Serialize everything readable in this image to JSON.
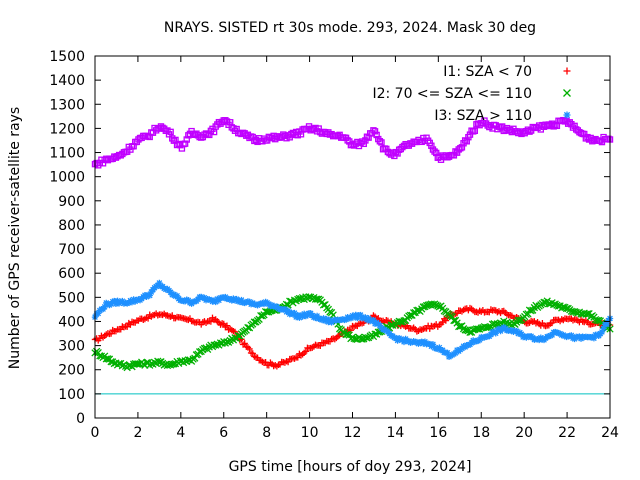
{
  "chart_data": {
    "type": "scatter",
    "title": "NRAYS. SISTED rt 30s mode. 293, 2024. Mask 30 deg",
    "xlabel": "GPS time [hours of doy 293, 2024]",
    "ylabel": "Number of GPS receiver-satellite rays",
    "xlim": [
      0,
      24
    ],
    "ylim": [
      0,
      1500
    ],
    "xticks": [
      0,
      2,
      4,
      6,
      8,
      10,
      12,
      14,
      16,
      18,
      20,
      22,
      24
    ],
    "yticks": [
      0,
      100,
      200,
      300,
      400,
      500,
      600,
      700,
      800,
      900,
      1000,
      1100,
      1200,
      1300,
      1400,
      1500
    ],
    "legend_position": "top-right",
    "threshold_line": {
      "y": 100,
      "color": "#00c0c0"
    },
    "series": [
      {
        "name": "I1: SZA < 70",
        "marker": "+",
        "color": "#ff0000",
        "x": [
          0,
          0.5,
          1,
          1.5,
          2,
          2.5,
          3,
          3.5,
          4,
          4.5,
          5,
          5.5,
          6,
          6.5,
          7,
          7.5,
          8,
          8.5,
          9,
          9.5,
          10,
          10.5,
          11,
          11.5,
          12,
          12.5,
          13,
          13.5,
          14,
          14.5,
          15,
          15.5,
          16,
          16.5,
          17,
          17.5,
          18,
          18.5,
          19,
          19.5,
          20,
          20.5,
          21,
          21.5,
          22,
          22.5,
          23,
          23.5,
          24
        ],
        "y": [
          320,
          345,
          365,
          385,
          405,
          420,
          430,
          425,
          410,
          405,
          390,
          410,
          385,
          355,
          300,
          255,
          225,
          220,
          235,
          260,
          290,
          305,
          320,
          345,
          375,
          395,
          420,
          400,
          390,
          380,
          365,
          375,
          385,
          420,
          445,
          450,
          440,
          445,
          440,
          420,
          400,
          395,
          385,
          405,
          415,
          405,
          395,
          390,
          385
        ]
      },
      {
        "name": "I2: 70 <= SZA <= 110",
        "marker": "x",
        "color": "#00b000",
        "x": [
          0,
          0.5,
          1,
          1.5,
          2,
          2.5,
          3,
          3.5,
          4,
          4.5,
          5,
          5.5,
          6,
          6.5,
          7,
          7.5,
          8,
          8.5,
          9,
          9.5,
          10,
          10.5,
          11,
          11.5,
          12,
          12.5,
          13,
          13.5,
          14,
          14.5,
          15,
          15.5,
          16,
          16.5,
          17,
          17.5,
          18,
          18.5,
          19,
          19.5,
          20,
          20.5,
          21,
          21.5,
          22,
          22.5,
          23,
          23.5,
          24
        ],
        "y": [
          275,
          250,
          225,
          215,
          225,
          225,
          230,
          220,
          235,
          240,
          280,
          300,
          310,
          330,
          360,
          400,
          440,
          450,
          475,
          495,
          500,
          485,
          440,
          360,
          330,
          330,
          340,
          370,
          390,
          410,
          440,
          465,
          470,
          430,
          380,
          360,
          370,
          385,
          395,
          390,
          420,
          460,
          480,
          470,
          450,
          440,
          430,
          400,
          370
        ]
      },
      {
        "name": "I3: SZA > 110",
        "marker": "*",
        "color": "#1e90ff",
        "x": [
          0,
          0.5,
          1,
          1.5,
          2,
          2.5,
          3,
          3.5,
          4,
          4.5,
          5,
          5.5,
          6,
          6.5,
          7,
          7.5,
          8,
          8.5,
          9,
          9.5,
          10,
          10.5,
          11,
          11.5,
          12,
          12.5,
          13,
          13.5,
          14,
          14.5,
          15,
          15.5,
          16,
          16.5,
          17,
          17.5,
          18,
          18.5,
          19,
          19.5,
          20,
          20.5,
          21,
          21.5,
          22,
          22.5,
          23,
          23.5,
          24
        ],
        "y": [
          420,
          470,
          480,
          480,
          490,
          510,
          555,
          520,
          490,
          480,
          500,
          480,
          505,
          490,
          480,
          470,
          475,
          460,
          440,
          420,
          430,
          410,
          400,
          410,
          420,
          420,
          400,
          360,
          330,
          320,
          310,
          310,
          290,
          260,
          280,
          310,
          330,
          350,
          370,
          360,
          340,
          330,
          330,
          360,
          340,
          330,
          335,
          340,
          415
        ]
      },
      {
        "name": "",
        "marker": "square",
        "color": "#c000ff",
        "x": [
          0,
          0.5,
          1,
          1.5,
          2,
          2.5,
          3,
          3.5,
          4,
          4.5,
          5,
          5.5,
          6,
          6.5,
          7,
          7.5,
          8,
          8.5,
          9,
          9.5,
          10,
          10.5,
          11,
          11.5,
          12,
          12.5,
          13,
          13.5,
          14,
          14.5,
          15,
          15.5,
          16,
          16.5,
          17,
          17.5,
          18,
          18.5,
          19,
          19.5,
          20,
          20.5,
          21,
          21.5,
          22,
          22.5,
          23,
          23.5,
          24
        ],
        "y": [
          1050,
          1070,
          1080,
          1110,
          1150,
          1170,
          1210,
          1180,
          1120,
          1180,
          1170,
          1190,
          1240,
          1200,
          1170,
          1150,
          1160,
          1160,
          1170,
          1180,
          1200,
          1190,
          1170,
          1170,
          1130,
          1140,
          1200,
          1110,
          1090,
          1130,
          1140,
          1160,
          1080,
          1080,
          1110,
          1180,
          1230,
          1210,
          1200,
          1190,
          1180,
          1200,
          1210,
          1220,
          1230,
          1190,
          1160,
          1150,
          1160
        ]
      }
    ]
  }
}
